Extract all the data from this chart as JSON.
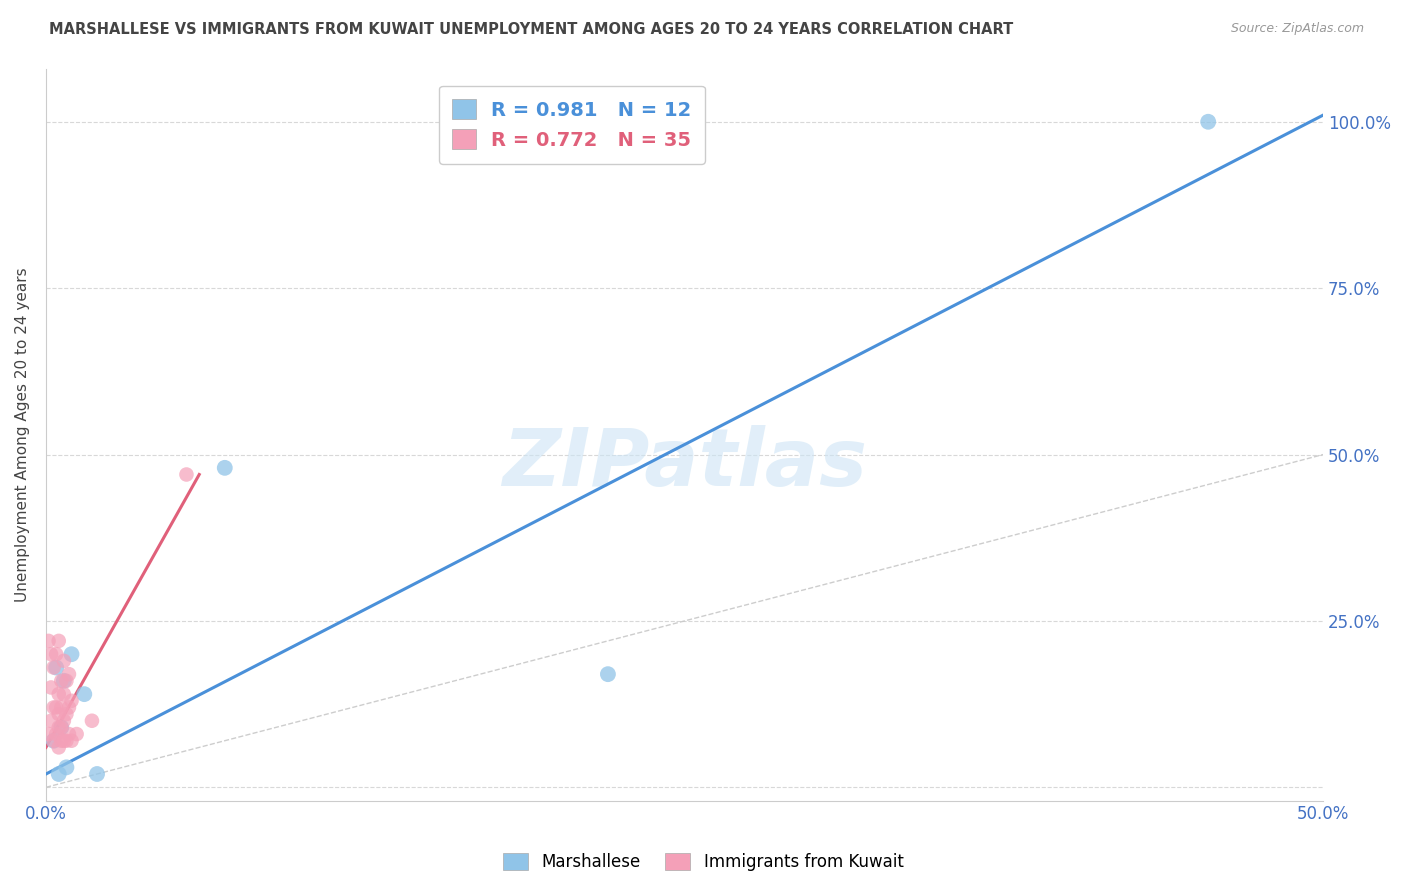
{
  "title": "MARSHALLESE VS IMMIGRANTS FROM KUWAIT UNEMPLOYMENT AMONG AGES 20 TO 24 YEARS CORRELATION CHART",
  "source": "Source: ZipAtlas.com",
  "ylabel": "Unemployment Among Ages 20 to 24 years",
  "xlim": [
    0.0,
    0.5
  ],
  "ylim": [
    -0.02,
    1.08
  ],
  "xticks": [
    0.0,
    0.1,
    0.2,
    0.3,
    0.4,
    0.5
  ],
  "xticklabels": [
    "0.0%",
    "",
    "",
    "",
    "",
    "50.0%"
  ],
  "yticks": [
    0.0,
    0.25,
    0.5,
    0.75,
    1.0
  ],
  "yticklabels": [
    "",
    "25.0%",
    "50.0%",
    "75.0%",
    "100.0%"
  ],
  "watermark": "ZIPatlas",
  "blue_color": "#90c4e8",
  "pink_color": "#f4a0b8",
  "blue_line_color": "#4a90d9",
  "pink_line_color": "#e0607a",
  "diag_line_color": "#c8c8c8",
  "grid_color": "#d8d8d8",
  "title_color": "#444444",
  "axis_label_color": "#444444",
  "tick_color": "#4472c4",
  "legend_R_blue": "R = 0.981",
  "legend_N_blue": "N = 12",
  "legend_R_pink": "R = 0.772",
  "legend_N_pink": "N = 35",
  "marshallese_x": [
    0.003,
    0.004,
    0.005,
    0.006,
    0.007,
    0.008,
    0.01,
    0.015,
    0.02,
    0.07,
    0.22,
    0.455
  ],
  "marshallese_y": [
    0.07,
    0.18,
    0.02,
    0.09,
    0.16,
    0.03,
    0.2,
    0.14,
    0.02,
    0.48,
    0.17,
    1.0
  ],
  "kuwait_x": [
    0.001,
    0.001,
    0.002,
    0.002,
    0.002,
    0.003,
    0.003,
    0.003,
    0.004,
    0.004,
    0.004,
    0.005,
    0.005,
    0.005,
    0.005,
    0.005,
    0.006,
    0.006,
    0.006,
    0.006,
    0.007,
    0.007,
    0.007,
    0.007,
    0.008,
    0.008,
    0.008,
    0.009,
    0.009,
    0.009,
    0.01,
    0.01,
    0.012,
    0.018,
    0.055
  ],
  "kuwait_y": [
    0.08,
    0.22,
    0.1,
    0.15,
    0.2,
    0.07,
    0.12,
    0.18,
    0.08,
    0.12,
    0.2,
    0.06,
    0.09,
    0.11,
    0.14,
    0.22,
    0.07,
    0.09,
    0.12,
    0.16,
    0.07,
    0.1,
    0.14,
    0.19,
    0.07,
    0.11,
    0.16,
    0.08,
    0.12,
    0.17,
    0.07,
    0.13,
    0.08,
    0.1,
    0.47
  ],
  "blue_regline_x": [
    0.0,
    0.5
  ],
  "blue_regline_y": [
    0.02,
    1.01
  ],
  "pink_regline_x": [
    0.0,
    0.06
  ],
  "pink_regline_y": [
    0.06,
    0.47
  ],
  "diag_line_x": [
    0.0,
    0.5
  ],
  "diag_line_y": [
    0.0,
    0.5
  ]
}
